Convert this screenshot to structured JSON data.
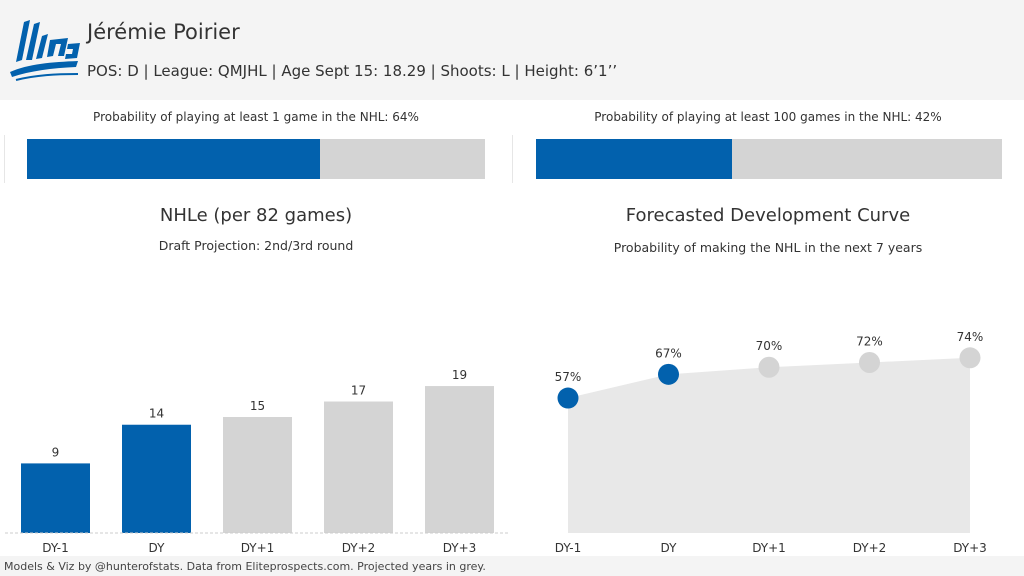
{
  "header": {
    "logo": {
      "name": "qmjhl-logo",
      "text": "LHJMQ",
      "color": "#0261ad"
    },
    "player_name": "Jérémie Poirier",
    "info_line": "POS: D | League: QMJHL | Age Sept 15: 18.29 | Shoots: L | Height: 6’1’’"
  },
  "probabilities": [
    {
      "label": "Probability of playing at least 1 game in the NHL: 64%",
      "value": 0.64
    },
    {
      "label": "Probability of playing at least 100 games in the NHL: 42%",
      "value": 0.42
    }
  ],
  "colors": {
    "actual": "#0261ad",
    "projected": "#d4d4d4",
    "area": "#e8e8e8"
  },
  "chart_data": [
    {
      "type": "bar",
      "title": "NHLe (per 82 games)",
      "subtitle": "Draft Projection: 2nd/3rd round",
      "categories": [
        "DY-1",
        "DY",
        "DY+1",
        "DY+2",
        "DY+3"
      ],
      "values": [
        9,
        14,
        15,
        17,
        19
      ],
      "data_labels": [
        "9",
        "14",
        "15",
        "17",
        "19"
      ],
      "projected": [
        false,
        false,
        true,
        true,
        true
      ],
      "ylim": [
        0,
        30
      ],
      "xlabel": "",
      "ylabel": ""
    },
    {
      "type": "area",
      "title": "Forecasted Development Curve",
      "subtitle": "Probability of making the NHL in the next 7 years",
      "categories": [
        "DY-1",
        "DY",
        "DY+1",
        "DY+2",
        "DY+3"
      ],
      "values": [
        57,
        67,
        70,
        72,
        74
      ],
      "data_labels": [
        "57%",
        "67%",
        "70%",
        "72%",
        "74%"
      ],
      "projected": [
        false,
        false,
        true,
        true,
        true
      ],
      "ylim": [
        0,
        106
      ],
      "xlabel": "",
      "ylabel": ""
    }
  ],
  "footer": {
    "text": "Models & Viz by @hunterofstats. Data from Eliteprospects.com. Projected years in grey."
  }
}
